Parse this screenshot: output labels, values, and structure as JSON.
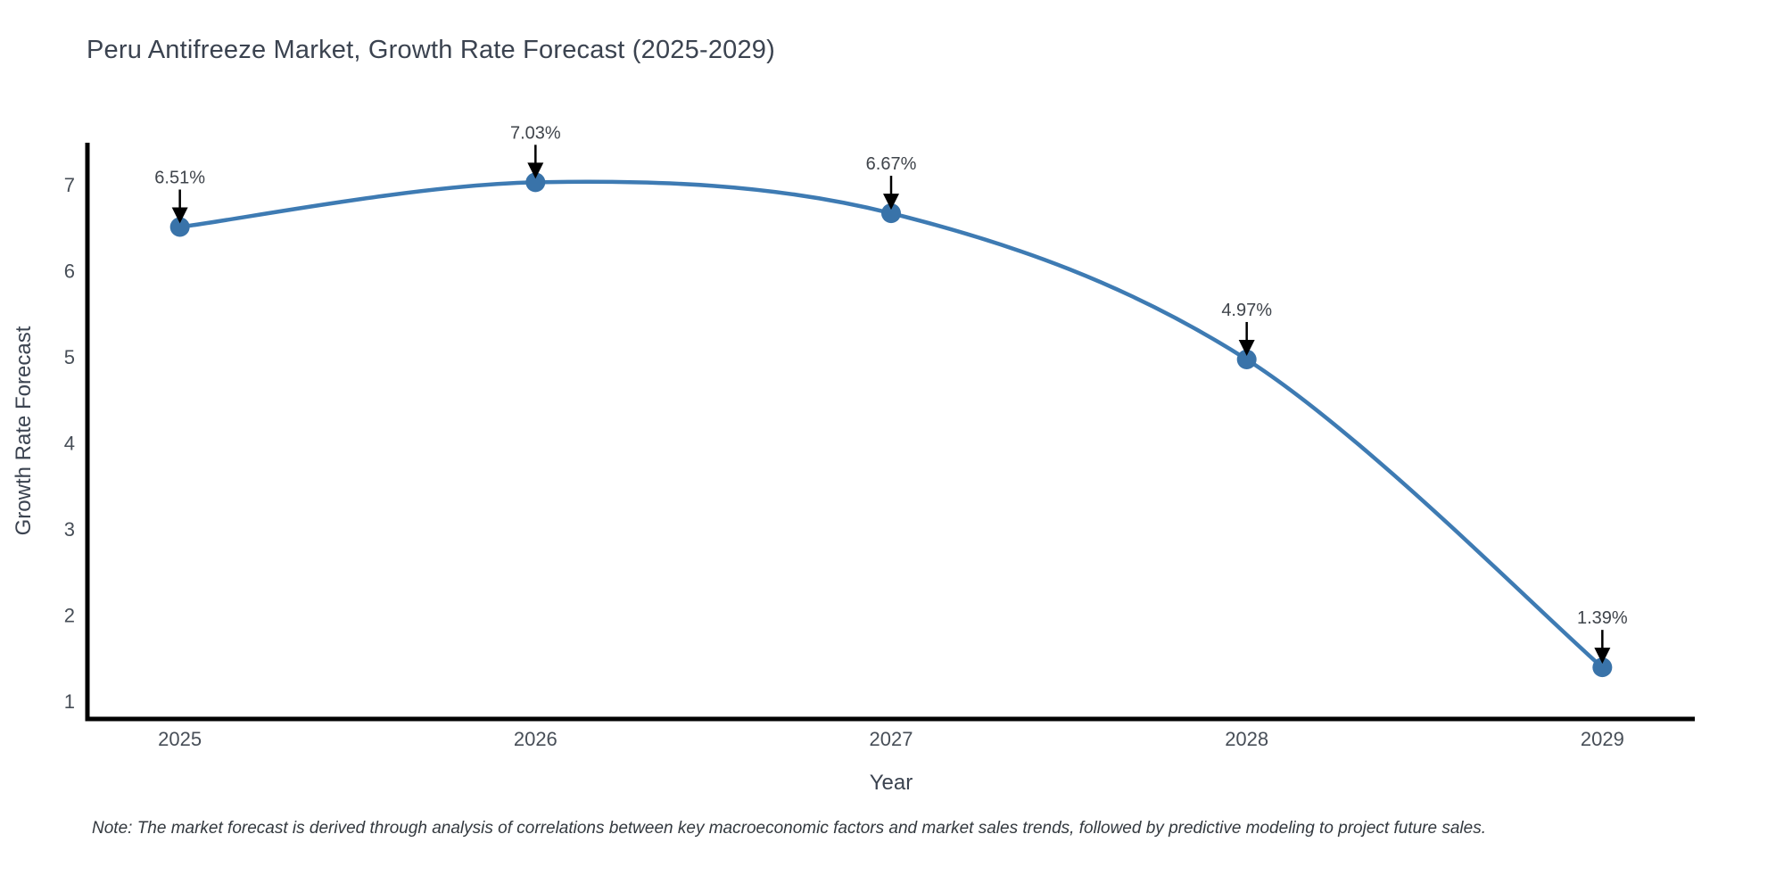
{
  "chart_data": {
    "type": "line",
    "title": "Peru Antifreeze Market, Growth Rate Forecast (2025-2029)",
    "xlabel": "Year",
    "ylabel": "Growth Rate Forecast",
    "x": [
      2025,
      2026,
      2027,
      2028,
      2029
    ],
    "values": [
      6.51,
      7.03,
      6.67,
      4.97,
      1.39
    ],
    "point_labels": [
      "6.51%",
      "7.03%",
      "6.67%",
      "4.97%",
      "1.39%"
    ],
    "xticks": [
      "2025",
      "2026",
      "2027",
      "2028",
      "2029"
    ],
    "yticks": [
      1,
      2,
      3,
      4,
      5,
      6,
      7
    ],
    "xlim": [
      2024.74,
      2029.26
    ],
    "ylim": [
      0.79,
      7.49
    ],
    "grid": false,
    "legend": "none",
    "line_shape": "spline",
    "annotation_arrows": "down",
    "footnote": "Note: The market forecast is derived through analysis of correlations between key macroeconomic factors and market sales trends, followed by predictive modeling to project future sales.",
    "colors": {
      "line": "#3E7BB3",
      "marker": "#3973A9",
      "axis": "#000000",
      "arrow": "#000000",
      "title_text": "#3b4350",
      "tick_text": "#474e57",
      "annotation_text": "#3f444b",
      "background": "#ffffff"
    }
  }
}
